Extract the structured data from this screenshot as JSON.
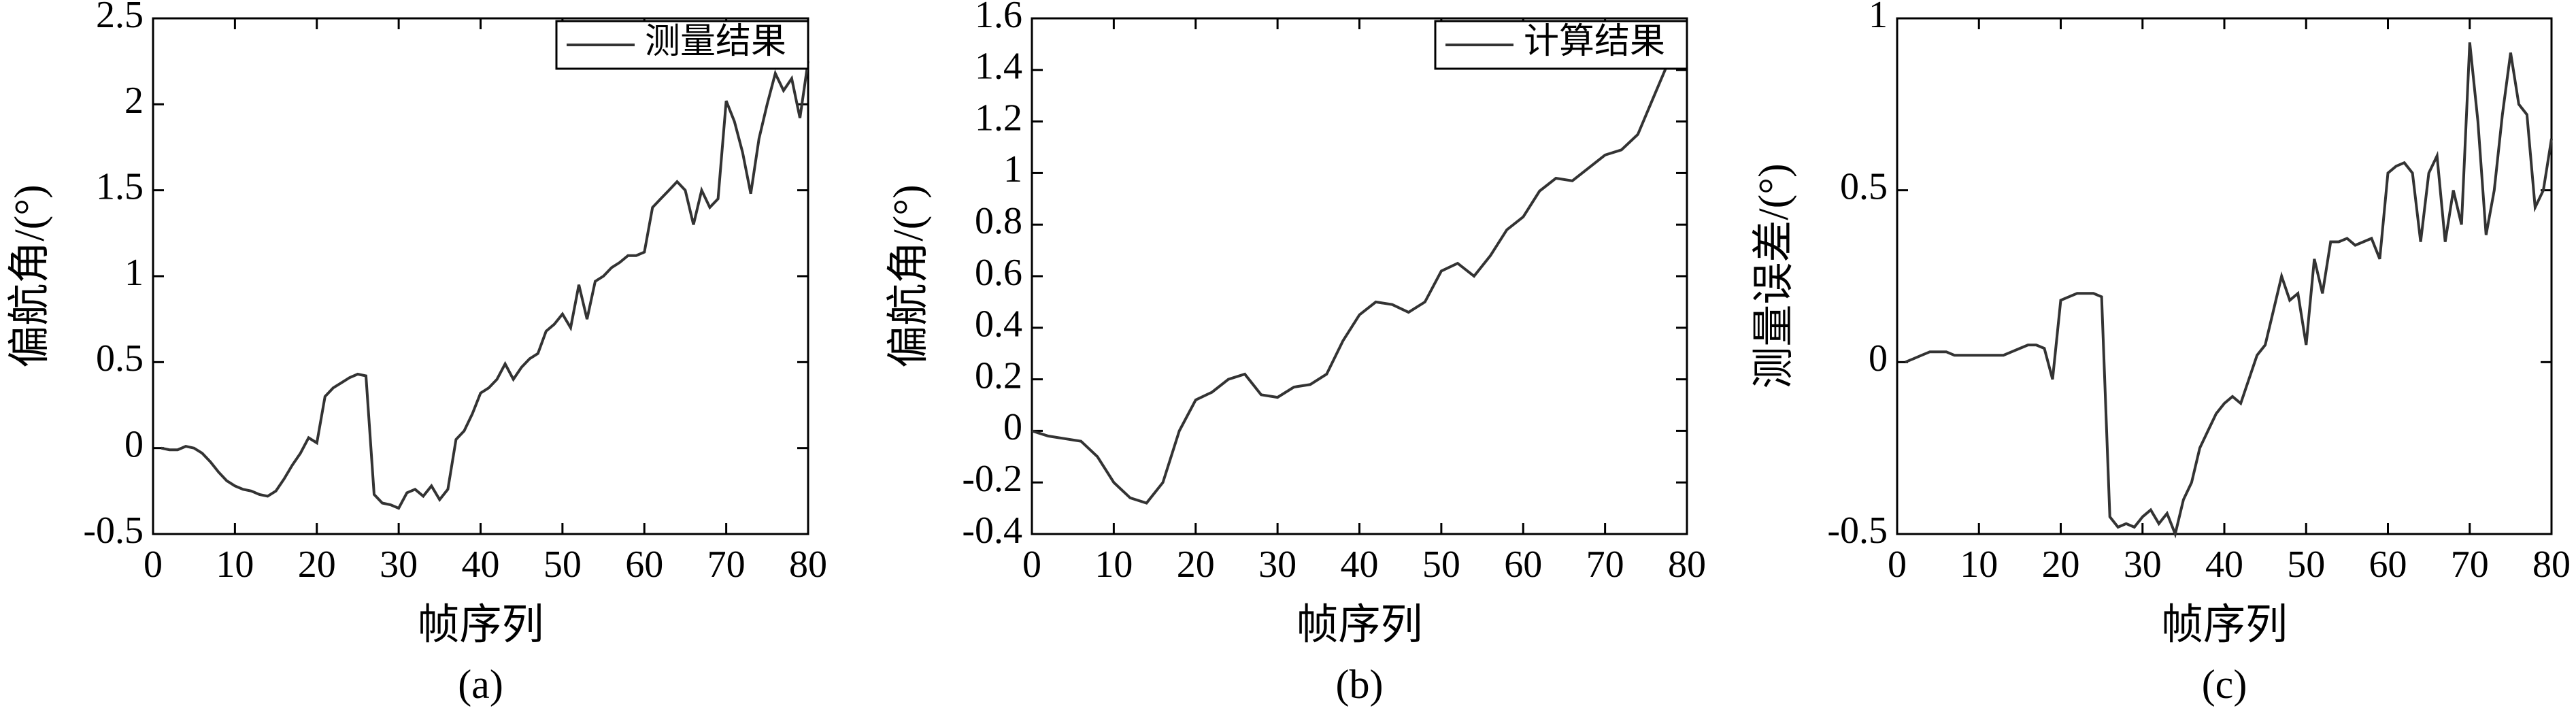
{
  "chart_data": [
    {
      "type": "line",
      "caption": "(a)",
      "xlabel": "帧序列",
      "ylabel": "偏航角/(°)",
      "legend": "upper right",
      "x": [
        1,
        2,
        3,
        4,
        5,
        6,
        7,
        8,
        9,
        10,
        11,
        12,
        13,
        14,
        15,
        16,
        17,
        18,
        19,
        20,
        21,
        22,
        23,
        24,
        25,
        26,
        27,
        28,
        29,
        30,
        31,
        32,
        33,
        34,
        35,
        36,
        37,
        38,
        39,
        40,
        41,
        42,
        43,
        44,
        45,
        46,
        47,
        48,
        49,
        50,
        51,
        52,
        53,
        54,
        55,
        56,
        57,
        58,
        59,
        60,
        61,
        62,
        63,
        64,
        65,
        66,
        67,
        68,
        69,
        70,
        71,
        72,
        73,
        74,
        75,
        76,
        77,
        78,
        79,
        80
      ],
      "series": [
        {
          "name": "测量结果",
          "color": "#333333",
          "values": [
            0,
            -0.01,
            -0.01,
            0.01,
            0,
            -0.03,
            -0.08,
            -0.14,
            -0.19,
            -0.22,
            -0.24,
            -0.25,
            -0.27,
            -0.28,
            -0.25,
            -0.18,
            -0.1,
            -0.03,
            0.06,
            0.03,
            0.3,
            0.35,
            0.38,
            0.41,
            0.43,
            0.42,
            -0.27,
            -0.32,
            -0.33,
            -0.35,
            -0.26,
            -0.24,
            -0.28,
            -0.22,
            -0.3,
            -0.24,
            0.05,
            0.1,
            0.2,
            0.32,
            0.35,
            0.4,
            0.49,
            0.4,
            0.47,
            0.52,
            0.55,
            0.68,
            0.72,
            0.78,
            0.7,
            0.95,
            0.75,
            0.97,
            1.0,
            1.05,
            1.08,
            1.12,
            1.12,
            1.14,
            1.4,
            1.45,
            1.5,
            1.55,
            1.5,
            1.3,
            1.5,
            1.4,
            1.45,
            2.02,
            1.9,
            1.72,
            1.48,
            1.8,
            2.0,
            2.18,
            2.08,
            2.15,
            1.92,
            2.25
          ]
        }
      ],
      "xlim": [
        0,
        80
      ],
      "ylim": [
        -0.5,
        2.5
      ],
      "xticks": [
        0,
        10,
        20,
        30,
        40,
        50,
        60,
        70,
        80
      ],
      "yticks": [
        -0.5,
        0,
        0.5,
        1,
        1.5,
        2,
        2.5
      ]
    },
    {
      "type": "line",
      "caption": "(b)",
      "xlabel": "帧序列",
      "ylabel": "偏航角/(°)",
      "legend": "upper right",
      "x": [
        0,
        2,
        4,
        6,
        8,
        10,
        12,
        14,
        16,
        18,
        20,
        22,
        24,
        26,
        28,
        30,
        32,
        34,
        36,
        38,
        40,
        42,
        44,
        46,
        48,
        50,
        52,
        54,
        56,
        58,
        60,
        62,
        64,
        66,
        68,
        70,
        72,
        74,
        76,
        78
      ],
      "series": [
        {
          "name": "计算结果",
          "color": "#333333",
          "values": [
            0,
            -0.02,
            -0.03,
            -0.04,
            -0.1,
            -0.2,
            -0.26,
            -0.28,
            -0.2,
            0,
            0.12,
            0.15,
            0.2,
            0.22,
            0.14,
            0.13,
            0.17,
            0.18,
            0.22,
            0.35,
            0.45,
            0.5,
            0.49,
            0.46,
            0.5,
            0.62,
            0.65,
            0.6,
            0.68,
            0.78,
            0.83,
            0.93,
            0.98,
            0.97,
            1.02,
            1.07,
            1.09,
            1.15,
            1.3,
            1.45
          ]
        }
      ],
      "xlim": [
        0,
        80
      ],
      "ylim": [
        -0.4,
        1.6
      ],
      "xticks": [
        0,
        10,
        20,
        30,
        40,
        50,
        60,
        70,
        80
      ],
      "yticks": [
        -0.4,
        -0.2,
        0,
        0.2,
        0.4,
        0.6,
        0.8,
        1,
        1.2,
        1.4,
        1.6
      ]
    },
    {
      "type": "line",
      "caption": "(c)",
      "xlabel": "帧序列",
      "ylabel": "测量误差/(°)",
      "x": [
        1,
        2,
        3,
        4,
        5,
        6,
        7,
        8,
        9,
        10,
        11,
        12,
        13,
        14,
        15,
        16,
        17,
        18,
        19,
        20,
        21,
        22,
        23,
        24,
        25,
        26,
        27,
        28,
        29,
        30,
        31,
        32,
        33,
        34,
        35,
        36,
        37,
        38,
        39,
        40,
        41,
        42,
        43,
        44,
        45,
        46,
        47,
        48,
        49,
        50,
        51,
        52,
        53,
        54,
        55,
        56,
        57,
        58,
        59,
        60,
        61,
        62,
        63,
        64,
        65,
        66,
        67,
        68,
        69,
        70,
        71,
        72,
        73,
        74,
        75,
        76,
        77,
        78,
        79,
        80
      ],
      "series": [
        {
          "color": "#333333",
          "values": [
            0,
            0.01,
            0.02,
            0.03,
            0.03,
            0.03,
            0.02,
            0.02,
            0.02,
            0.02,
            0.02,
            0.02,
            0.02,
            0.03,
            0.04,
            0.05,
            0.05,
            0.04,
            -0.05,
            0.18,
            0.19,
            0.2,
            0.2,
            0.2,
            0.19,
            -0.45,
            -0.48,
            -0.47,
            -0.48,
            -0.45,
            -0.43,
            -0.47,
            -0.44,
            -0.5,
            -0.4,
            -0.35,
            -0.25,
            -0.2,
            -0.15,
            -0.12,
            -0.1,
            -0.12,
            -0.05,
            0.02,
            0.05,
            0.15,
            0.25,
            0.18,
            0.2,
            0.05,
            0.3,
            0.2,
            0.35,
            0.35,
            0.36,
            0.34,
            0.35,
            0.36,
            0.3,
            0.55,
            0.57,
            0.58,
            0.55,
            0.35,
            0.55,
            0.6,
            0.35,
            0.5,
            0.4,
            0.93,
            0.7,
            0.37,
            0.5,
            0.72,
            0.9,
            0.75,
            0.72,
            0.45,
            0.5,
            0.65
          ]
        }
      ],
      "xlim": [
        0,
        80
      ],
      "ylim": [
        -0.5,
        1
      ],
      "xticks": [
        0,
        10,
        20,
        30,
        40,
        50,
        60,
        70,
        80
      ],
      "yticks": [
        -0.5,
        0,
        0.5,
        1
      ]
    }
  ]
}
